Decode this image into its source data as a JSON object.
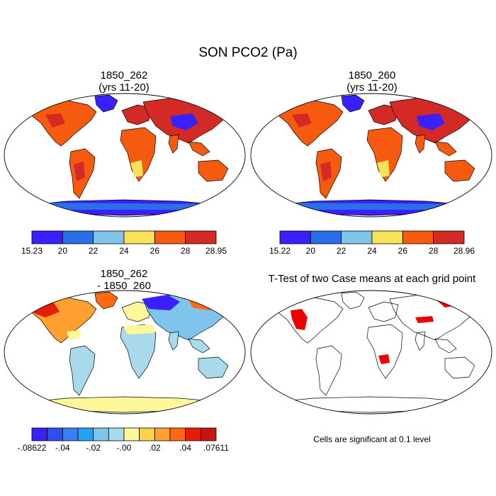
{
  "figure": {
    "title": "SON PCO2 (Pa)"
  },
  "panels": [
    {
      "title": "1850_262\n(yrs 11-20)",
      "type": "filled-contour-map",
      "colorbar": {
        "labels": [
          "15.23",
          "20",
          "22",
          "24",
          "26",
          "28",
          "28.95"
        ],
        "colors": [
          "#3a1fff",
          "#2a6fe8",
          "#80c4ea",
          "#f6e35a",
          "#f55a0e",
          "#d42a25"
        ]
      }
    },
    {
      "title": "1850_260\n(yrs 11-20)",
      "type": "filled-contour-map",
      "colorbar": {
        "labels": [
          "15.22",
          "20",
          "22",
          "24",
          "26",
          "28",
          "28.96"
        ],
        "colors": [
          "#3a1fff",
          "#2a6fe8",
          "#80c4ea",
          "#f6e35a",
          "#f55a0e",
          "#d42a25"
        ]
      }
    },
    {
      "title": "1850_262\n- 1850_260",
      "type": "difference-map",
      "colorbar": {
        "labels": [
          "-.08622",
          "-.04",
          "-.02",
          "-.00",
          ".02",
          ".04",
          ".07611"
        ],
        "colors": [
          "#3a1fff",
          "#2e4ff0",
          "#3a7ff5",
          "#28a0f2",
          "#7fc4ea",
          "#a8daea",
          "#fff89a",
          "#ffd24a",
          "#ffa030",
          "#ff6a10",
          "#e51e0a",
          "#c81414"
        ]
      }
    },
    {
      "title": "T-Test of two Case means at each grid point",
      "type": "significance-map",
      "footnote": "Cells are significant at 0.1 level"
    }
  ],
  "map_colors": {
    "ocean": "#ffffff",
    "border": "#000000",
    "warm_land": "#f55a0e",
    "hot_land": "#d42a25",
    "mid_land": "#f6e35a",
    "cool_land": "#80c4ea",
    "cold_land": "#3a1fff",
    "signif": "#ee0000"
  }
}
